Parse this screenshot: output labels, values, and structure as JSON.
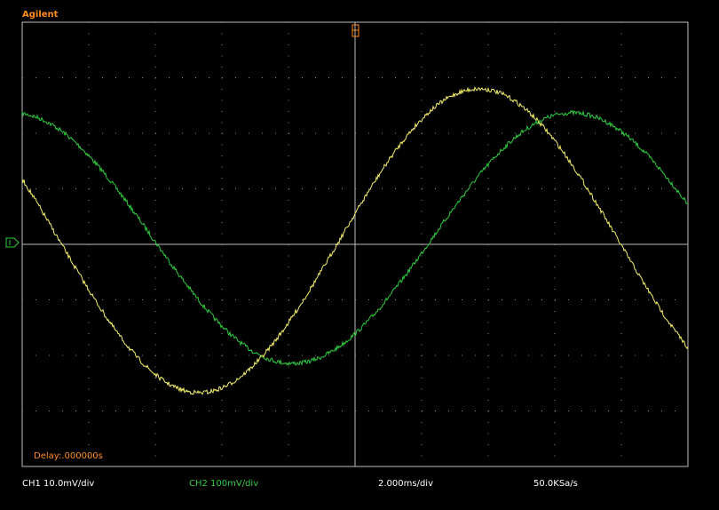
{
  "header": {
    "brand": "Agilent"
  },
  "screen": {
    "delay": "Delay:.000000s"
  },
  "status": {
    "ch1": "CH1 10.0mV/div",
    "ch2": "CH2 100mV/div",
    "timebase": "2.000ms/div",
    "sample_rate": "50.0KSa/s"
  }
}
